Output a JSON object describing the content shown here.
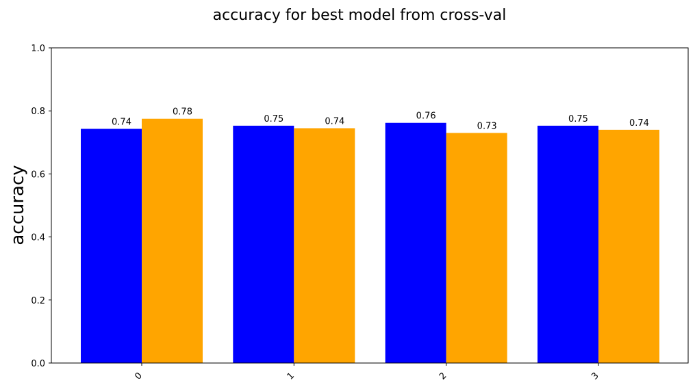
{
  "chart_data": {
    "type": "bar",
    "title": "accuracy for best model from cross-val",
    "xlabel": "",
    "ylabel": "accuracy",
    "categories": [
      "0",
      "1",
      "2",
      "3"
    ],
    "series": [
      {
        "values": [
          0.743,
          0.753,
          0.762,
          0.753
        ],
        "labels": [
          "0.74",
          "0.75",
          "0.76",
          "0.75"
        ],
        "color": "#0000ff"
      },
      {
        "values": [
          0.775,
          0.745,
          0.73,
          0.74
        ],
        "labels": [
          "0.78",
          "0.74",
          "0.73",
          "0.74"
        ],
        "color": "#ffa500"
      }
    ],
    "ylim": [
      0,
      1
    ],
    "yticks": [
      "0.0",
      "0.2",
      "0.4",
      "0.6",
      "0.8",
      "1.0"
    ],
    "ytick_values": [
      0,
      0.2,
      0.4,
      0.6,
      0.8,
      1.0
    ],
    "xtick_rotation": 45,
    "grid": false,
    "legend": "none"
  }
}
